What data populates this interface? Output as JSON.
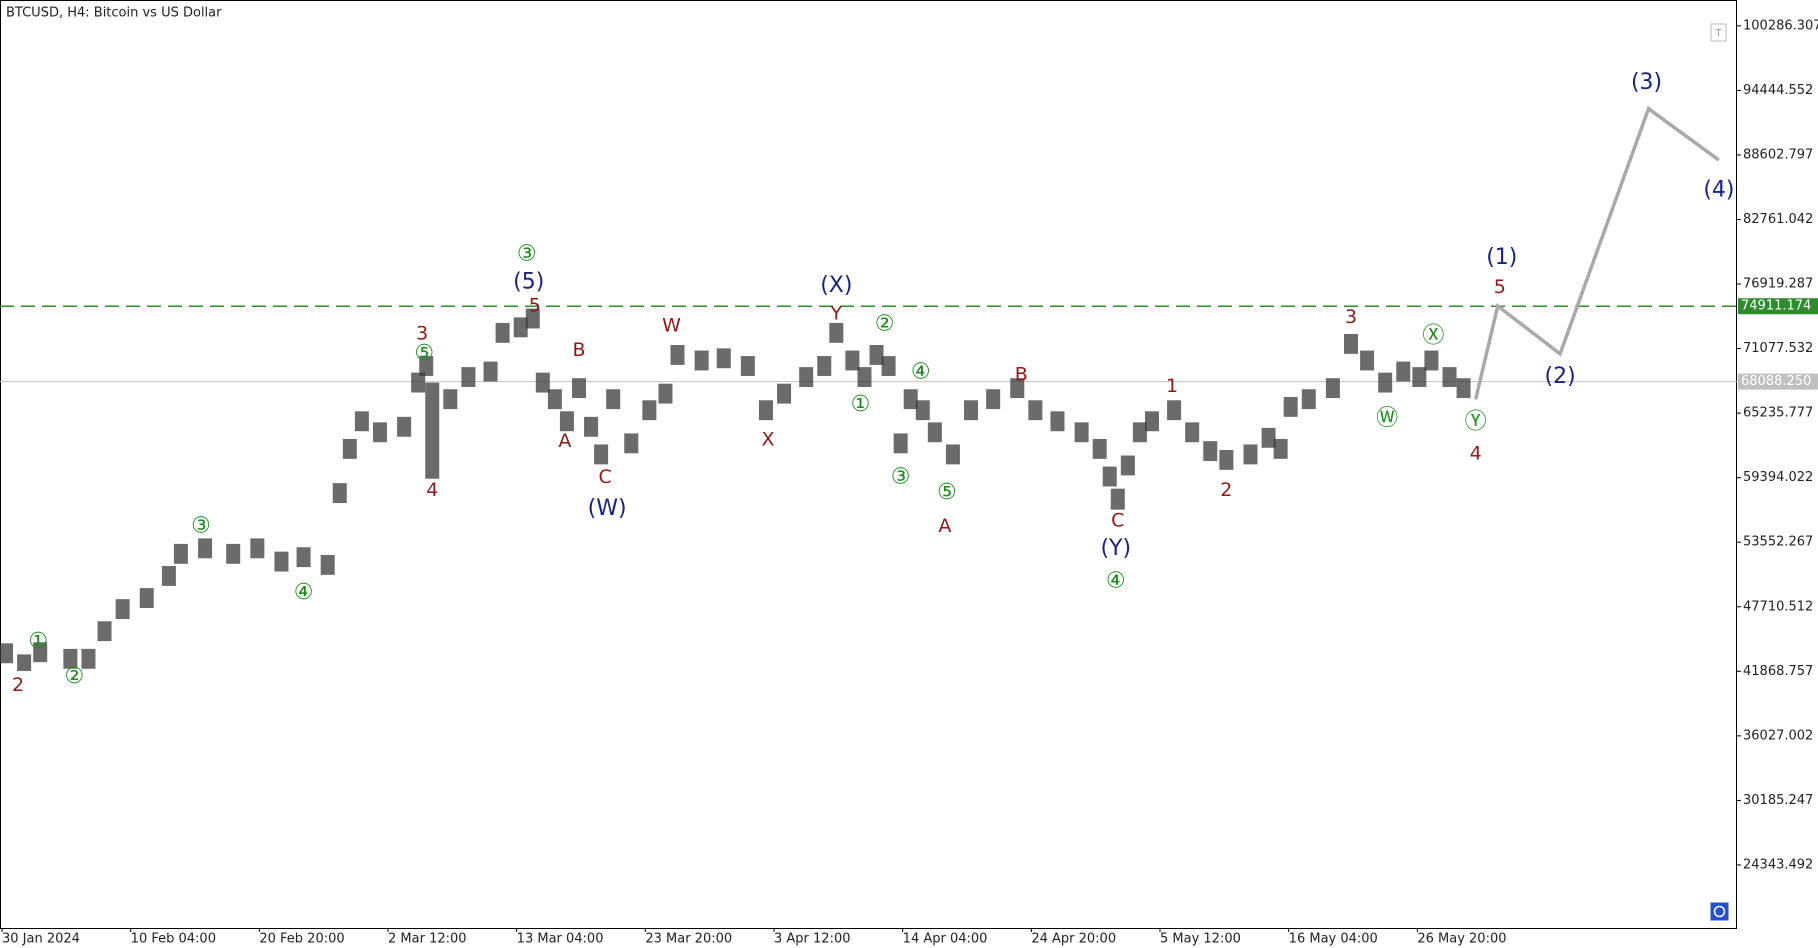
{
  "chart_data": {
    "type": "ohlc",
    "title": "BTCUSD, H4:  Bitcoin vs US Dollar",
    "bar_color": "#3a3a3a",
    "x": [
      3,
      12,
      20,
      35,
      44,
      52,
      61,
      73,
      84,
      90,
      102,
      116,
      128,
      140,
      151,
      163,
      169,
      174,
      180,
      189,
      201,
      208,
      212,
      215,
      224,
      233,
      244,
      250,
      259,
      265,
      270,
      276,
      282,
      288,
      294,
      299,
      305,
      314,
      323,
      331,
      337,
      349,
      360,
      372,
      381,
      390,
      401,
      410,
      416,
      424,
      430,
      436,
      442,
      448,
      453,
      459,
      465,
      474,
      483,
      494,
      506,
      515,
      526,
      538,
      547,
      552,
      556,
      561,
      567,
      573,
      584,
      593,
      602,
      610,
      622,
      631,
      637,
      642,
      651,
      663,
      672,
      680,
      689,
      698,
      706,
      712,
      721,
      728
    ],
    "high": [
      44400,
      43400,
      44500,
      43900,
      43900,
      46400,
      48400,
      49400,
      51400,
      53400,
      53900,
      53400,
      53900,
      52700,
      53100,
      52400,
      58900,
      62900,
      65400,
      64400,
      64900,
      68900,
      70400,
      68000,
      67400,
      69400,
      69900,
      73400,
      73900,
      74700,
      68900,
      67400,
      65400,
      68400,
      64900,
      62400,
      67400,
      63400,
      66400,
      67900,
      71400,
      70900,
      71100,
      70400,
      66400,
      67900,
      69400,
      70400,
      73400,
      70900,
      69400,
      71400,
      70400,
      63400,
      67400,
      66400,
      64400,
      62400,
      66400,
      67400,
      68400,
      66400,
      65400,
      64400,
      62900,
      60400,
      58400,
      61400,
      64400,
      65400,
      66400,
      64400,
      62700,
      61900,
      62400,
      63900,
      62900,
      66700,
      67400,
      68400,
      72400,
      70900,
      68900,
      69900,
      69400,
      70900,
      69400,
      68400
    ],
    "low": [
      42600,
      41900,
      42700,
      42100,
      42100,
      44600,
      46600,
      47600,
      49600,
      51600,
      52100,
      51600,
      52100,
      50900,
      51300,
      50600,
      57100,
      61100,
      63600,
      62600,
      63100,
      67100,
      68600,
      59300,
      65600,
      67600,
      68100,
      71600,
      72100,
      72900,
      67100,
      65600,
      63600,
      66600,
      63100,
      60600,
      65600,
      61600,
      64600,
      66100,
      69600,
      69100,
      69300,
      68600,
      64600,
      66100,
      67600,
      68600,
      71600,
      69100,
      67600,
      69600,
      68600,
      61600,
      65600,
      64600,
      62600,
      60600,
      64600,
      65600,
      66600,
      64600,
      63600,
      62600,
      61100,
      58600,
      56500,
      59600,
      62600,
      63600,
      64600,
      62600,
      60900,
      60100,
      60600,
      62100,
      61100,
      64900,
      65600,
      66600,
      70600,
      69100,
      67100,
      68100,
      67600,
      69100,
      67600,
      66600
    ],
    "projection": {
      "color": "#a9a9a9",
      "x": [
        734,
        745,
        776,
        820,
        855
      ],
      "values": [
        66481,
        74933,
        70600,
        92786,
        88138
      ]
    },
    "xlim": [
      0,
      864
    ],
    "xticks": [
      {
        "value": 1,
        "label": "30 Jan 2024"
      },
      {
        "value": 65,
        "label": "10 Feb 04:00"
      },
      {
        "value": 129,
        "label": "20 Feb 20:00"
      },
      {
        "value": 193,
        "label": "2 Mar 12:00"
      },
      {
        "value": 257,
        "label": "13 Mar 04:00"
      },
      {
        "value": 321,
        "label": "23 Mar 20:00"
      },
      {
        "value": 385,
        "label": "3 Apr 12:00"
      },
      {
        "value": 449,
        "label": "14 Apr 04:00"
      },
      {
        "value": 513,
        "label": "24 Apr 20:00"
      },
      {
        "value": 577,
        "label": "5 May 12:00"
      },
      {
        "value": 641,
        "label": "16 May 04:00"
      },
      {
        "value": 705,
        "label": "26 May 20:00"
      }
    ],
    "ylim": [
      18639,
      102082
    ],
    "yticks": [
      100286.307,
      94444.552,
      88602.797,
      82761.042,
      76919.287,
      71077.532,
      65235.777,
      59394.022,
      53552.267,
      47710.512,
      41868.757,
      36027.002,
      30185.247,
      24343.492
    ],
    "level_line": {
      "value": 74911.174,
      "color": "#2e8b2e"
    },
    "price_line": {
      "value": 68088.25,
      "label": "68088.250",
      "color": "#c0c0c0"
    },
    "annotations": [
      {
        "text": "2",
        "x": 9,
        "y": 40600,
        "color": "#8b1a1a"
      },
      {
        "text": "①",
        "x": 19,
        "y": 44508,
        "color": "#1e8a1e"
      },
      {
        "text": "②",
        "x": 37,
        "y": 41339,
        "color": "#1e8a1e"
      },
      {
        "text": "③",
        "x": 100,
        "y": 54967,
        "color": "#1e8a1e"
      },
      {
        "text": "④",
        "x": 151,
        "y": 48945,
        "color": "#1e8a1e"
      },
      {
        "text": "3",
        "x": 210,
        "y": 72397,
        "color": "#8b1a1a"
      },
      {
        "text": "⑤",
        "x": 211,
        "y": 70601,
        "color": "#1e8a1e"
      },
      {
        "text": "4",
        "x": 215,
        "y": 58242,
        "color": "#8b1a1a"
      },
      {
        "text": "③",
        "x": 262,
        "y": 79581,
        "color": "#1e8a1e"
      },
      {
        "text": "(5)",
        "x": 263,
        "y": 77046,
        "color": "#1a237e"
      },
      {
        "text": "5",
        "x": 266,
        "y": 74933,
        "color": "#8b1a1a"
      },
      {
        "text": "B",
        "x": 288,
        "y": 70918,
        "color": "#8b1a1a"
      },
      {
        "text": "A",
        "x": 281,
        "y": 62678,
        "color": "#8b1a1a"
      },
      {
        "text": "C",
        "x": 301,
        "y": 59403,
        "color": "#8b1a1a"
      },
      {
        "text": "(W)",
        "x": 302,
        "y": 56551,
        "color": "#1a237e"
      },
      {
        "text": "W",
        "x": 334,
        "y": 73137,
        "color": "#8b1a1a"
      },
      {
        "text": "X",
        "x": 382,
        "y": 62784,
        "color": "#8b1a1a"
      },
      {
        "text": "(X)",
        "x": 416,
        "y": 76729,
        "color": "#1a237e"
      },
      {
        "text": "Y",
        "x": 416,
        "y": 74194,
        "color": "#8b1a1a"
      },
      {
        "text": "②",
        "x": 440,
        "y": 73243,
        "color": "#1e8a1e"
      },
      {
        "text": "④",
        "x": 458,
        "y": 68912,
        "color": "#1e8a1e"
      },
      {
        "text": "①",
        "x": 428,
        "y": 65954,
        "color": "#1e8a1e"
      },
      {
        "text": "③",
        "x": 448,
        "y": 59403,
        "color": "#1e8a1e"
      },
      {
        "text": "⑤",
        "x": 471,
        "y": 58030,
        "color": "#1e8a1e"
      },
      {
        "text": "A",
        "x": 470,
        "y": 54967,
        "color": "#8b1a1a"
      },
      {
        "text": "B",
        "x": 508,
        "y": 68700,
        "color": "#8b1a1a"
      },
      {
        "text": "C",
        "x": 556,
        "y": 55495,
        "color": "#8b1a1a"
      },
      {
        "text": "(Y)",
        "x": 555,
        "y": 52960,
        "color": "#1a237e"
      },
      {
        "text": "④",
        "x": 555,
        "y": 49995,
        "color": "#1e8a1e"
      },
      {
        "text": "1",
        "x": 583,
        "y": 67643,
        "color": "#8b1a1a"
      },
      {
        "text": "2",
        "x": 610,
        "y": 58242,
        "color": "#8b1a1a"
      },
      {
        "text": "3",
        "x": 672,
        "y": 73875,
        "color": "#8b1a1a"
      },
      {
        "text": "Ⓦ",
        "x": 690,
        "y": 64686,
        "color": "#1e8a1e"
      },
      {
        "text": "Ⓧ",
        "x": 713,
        "y": 72186,
        "color": "#1e8a1e"
      },
      {
        "text": "Ⓨ",
        "x": 734,
        "y": 64369,
        "color": "#1e8a1e"
      },
      {
        "text": "4",
        "x": 734,
        "y": 61517,
        "color": "#8b1a1a"
      },
      {
        "text": "(1)",
        "x": 747,
        "y": 79264,
        "color": "#1a237e"
      },
      {
        "text": "5",
        "x": 746,
        "y": 76623,
        "color": "#8b1a1a"
      },
      {
        "text": "(2)",
        "x": 776,
        "y": 68489,
        "color": "#1a237e"
      },
      {
        "text": "(3)",
        "x": 819,
        "y": 95110,
        "color": "#1a237e"
      },
      {
        "text": "(4)",
        "x": 855,
        "y": 85391,
        "color": "#1a237e"
      }
    ]
  }
}
